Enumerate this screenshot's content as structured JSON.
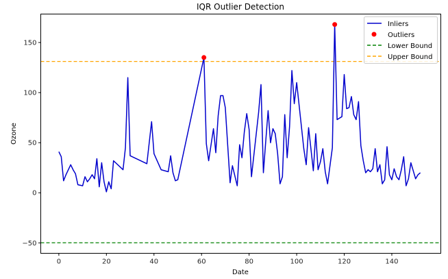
{
  "chart_data": {
    "type": "line",
    "title": "IQR Outlier Detection",
    "xlabel": "Date",
    "ylabel": "Ozone",
    "xlim": [
      -7.6,
      160.6
    ],
    "ylim": [
      -60.4,
      178.4
    ],
    "xticks": [
      0,
      20,
      40,
      60,
      80,
      100,
      120,
      140
    ],
    "yticks": [
      -50,
      0,
      50,
      100,
      150
    ],
    "grid": false,
    "legend_position": "upper right",
    "legend": [
      "Inliers",
      "Outliers",
      "Lower Bound",
      "Upper Bound"
    ],
    "colors": {
      "inliers": "#0000cc",
      "outliers": "#ff0000",
      "lower_bound": "#008000",
      "upper_bound": "#ffa500",
      "axes": "#000000"
    },
    "lower_bound": -49.875,
    "upper_bound": 131.125,
    "series": [
      {
        "name": "Inliers",
        "x": [
          0,
          1,
          2,
          3,
          5,
          6,
          7,
          8,
          10,
          11,
          12,
          13,
          14,
          15,
          16,
          17,
          18,
          19,
          20,
          21,
          22,
          23,
          27,
          28,
          29,
          30,
          37,
          39,
          40,
          43,
          46,
          47,
          48,
          49,
          50,
          61,
          62,
          63,
          65,
          66,
          67,
          68,
          69,
          70,
          72,
          73,
          75,
          76,
          77,
          78,
          79,
          80,
          81,
          84,
          85,
          86,
          87,
          88,
          89,
          90,
          91,
          92,
          93,
          94,
          95,
          96,
          97,
          98,
          99,
          100,
          103,
          104,
          105,
          107,
          108,
          109,
          110,
          111,
          112,
          113,
          115,
          116,
          117,
          119,
          120,
          121,
          122,
          123,
          124,
          125,
          126,
          127,
          128,
          129,
          130,
          131,
          132,
          133,
          134,
          135,
          136,
          137,
          138,
          139,
          140,
          141,
          142,
          143,
          144,
          145,
          146,
          147,
          148,
          150,
          151,
          152
        ],
        "y": [
          41,
          36,
          12,
          18,
          28,
          23,
          19,
          8,
          7,
          16,
          11,
          14,
          18,
          14,
          34,
          6,
          30,
          11,
          1,
          11,
          4,
          32,
          23,
          45,
          115,
          37,
          29,
          71,
          39,
          23,
          21,
          37,
          20,
          12,
          13,
          135,
          49,
          32,
          64,
          40,
          77,
          97,
          97,
          85,
          10,
          27,
          7,
          48,
          35,
          61,
          79,
          63,
          16,
          80,
          108,
          20,
          52,
          82,
          50,
          64,
          59,
          39,
          9,
          16,
          78,
          35,
          66,
          122,
          89,
          110,
          44,
          28,
          65,
          22,
          59,
          23,
          31,
          44,
          21,
          9,
          45,
          168,
          73,
          76,
          118,
          84,
          85,
          96,
          78,
          73,
          91,
          47,
          32,
          20,
          23,
          21,
          24,
          44,
          21,
          28,
          9,
          13,
          46,
          18,
          13,
          24,
          16,
          13,
          23,
          36,
          7,
          14,
          30,
          14,
          18,
          20
        ]
      },
      {
        "name": "Outliers",
        "x": [
          61,
          116
        ],
        "y": [
          135,
          168
        ]
      }
    ]
  }
}
